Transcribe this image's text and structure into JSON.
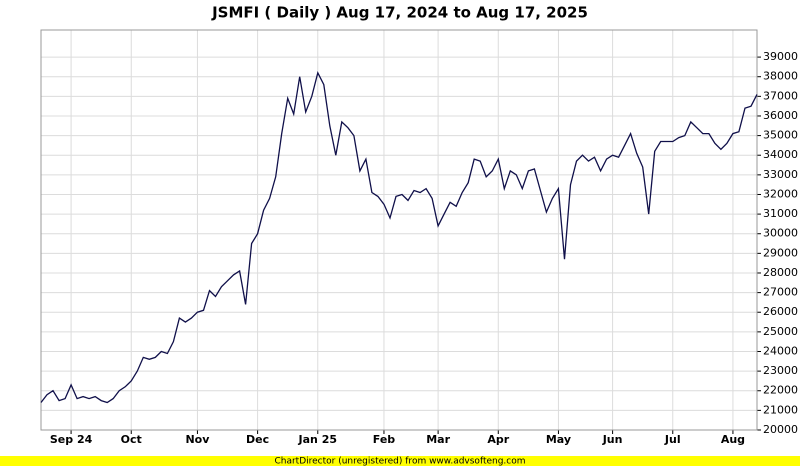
{
  "chart_data": {
    "type": "line",
    "title": "JSMFI ( Daily ) Aug 17, 2024 to Aug 17, 2025",
    "credit": "ChartDirector (unregistered) from www.advsofteng.com",
    "categories": [
      null,
      null,
      null,
      null,
      null,
      "Sep 24",
      null,
      null,
      null,
      null,
      null,
      null,
      null,
      null,
      null,
      "Oct",
      null,
      null,
      null,
      null,
      null,
      null,
      null,
      null,
      null,
      null,
      "Nov",
      null,
      null,
      null,
      null,
      null,
      null,
      null,
      null,
      null,
      "Dec",
      null,
      null,
      null,
      null,
      null,
      null,
      null,
      null,
      null,
      "Jan 25",
      null,
      null,
      null,
      null,
      null,
      null,
      null,
      null,
      null,
      null,
      "Feb",
      null,
      null,
      null,
      null,
      null,
      null,
      null,
      null,
      "Mar",
      null,
      null,
      null,
      null,
      null,
      null,
      null,
      null,
      null,
      "Apr",
      null,
      null,
      null,
      null,
      null,
      null,
      null,
      null,
      null,
      "May",
      null,
      null,
      null,
      null,
      null,
      null,
      null,
      null,
      "Jun",
      null,
      null,
      null,
      null,
      null,
      null,
      null,
      null,
      null,
      "Jul",
      null,
      null,
      null,
      null,
      null,
      null,
      null,
      null,
      null,
      "Aug",
      null,
      null,
      null,
      null
    ],
    "series": [
      {
        "name": "JSMFI",
        "color": "#10104a",
        "values": [
          21400,
          21800,
          22000,
          21500,
          21600,
          22300,
          21600,
          21700,
          21600,
          21700,
          21500,
          21400,
          21600,
          22000,
          22200,
          22500,
          23000,
          23700,
          23600,
          23700,
          24000,
          23900,
          24500,
          25700,
          25500,
          25700,
          26000,
          26100,
          27100,
          26800,
          27300,
          27600,
          27900,
          28100,
          26400,
          29500,
          30000,
          31200,
          31800,
          32900,
          35100,
          36900,
          36100,
          38000,
          36200,
          37000,
          38200,
          37600,
          35500,
          34000,
          35700,
          35400,
          35000,
          33200,
          33800,
          32100,
          31900,
          31500,
          30800,
          31900,
          32000,
          31700,
          32200,
          32100,
          32300,
          31800,
          30400,
          31000,
          31600,
          31400,
          32100,
          32600,
          33800,
          33700,
          32900,
          33200,
          33800,
          32300,
          33200,
          33000,
          32300,
          33200,
          33300,
          32200,
          31100,
          31800,
          32300,
          28700,
          32500,
          33700,
          34000,
          33700,
          33900,
          33200,
          33800,
          34000,
          33900,
          34500,
          35100,
          34100,
          33400,
          31000,
          34200,
          34700,
          34700,
          34700,
          34900,
          35000,
          35700,
          35400,
          35100,
          35100,
          34600,
          34300,
          34600,
          35100,
          35200,
          36400,
          36500,
          37100
        ]
      }
    ],
    "ylim": [
      20000,
      40380
    ],
    "yticks": [
      20000,
      21000,
      22000,
      23000,
      24000,
      25000,
      26000,
      27000,
      28000,
      29000,
      30000,
      31000,
      32000,
      33000,
      34000,
      35000,
      36000,
      37000,
      38000,
      39000
    ],
    "grid": true
  }
}
